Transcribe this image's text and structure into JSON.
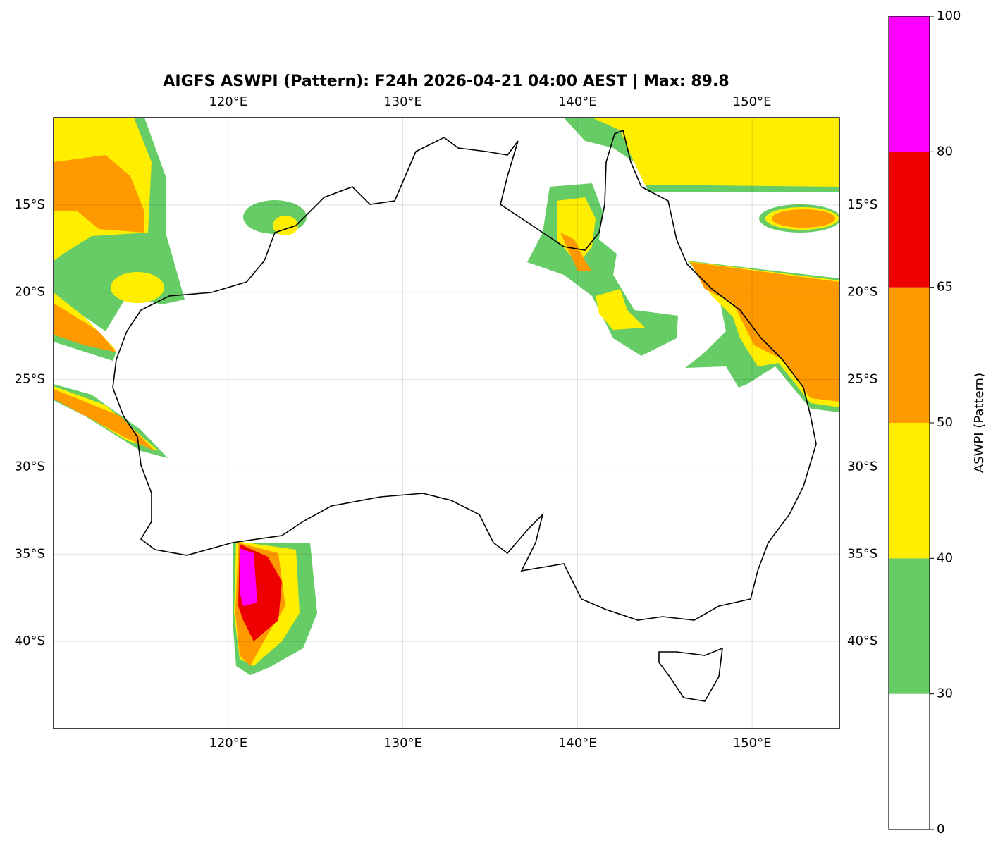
{
  "chart_data": {
    "type": "map",
    "title": "AIGFS ASWPI (Pattern): F24h 2026-04-21 04:00 AEST | Max: 89.8",
    "xlim": [
      110,
      155
    ],
    "ylim": [
      -45,
      -10
    ],
    "xticks": [
      {
        "value": 120,
        "label": "120°E"
      },
      {
        "value": 130,
        "label": "130°E"
      },
      {
        "value": 140,
        "label": "140°E"
      },
      {
        "value": 150,
        "label": "150°E"
      }
    ],
    "yticks": [
      {
        "value": -15,
        "label": "15°S"
      },
      {
        "value": -20,
        "label": "20°S"
      },
      {
        "value": -25,
        "label": "25°S"
      },
      {
        "value": -30,
        "label": "30°S"
      },
      {
        "value": -35,
        "label": "35°S"
      },
      {
        "value": -40,
        "label": "40°S"
      }
    ],
    "grid": true,
    "colorbar": {
      "label": "ASWPI (Pattern)",
      "levels": [
        0,
        30,
        40,
        50,
        65,
        80,
        100
      ],
      "colors": [
        "#ffffff",
        "#66cc66",
        "#ffee00",
        "#ff9900",
        "#ee0000",
        "#ff00ff"
      ]
    }
  }
}
